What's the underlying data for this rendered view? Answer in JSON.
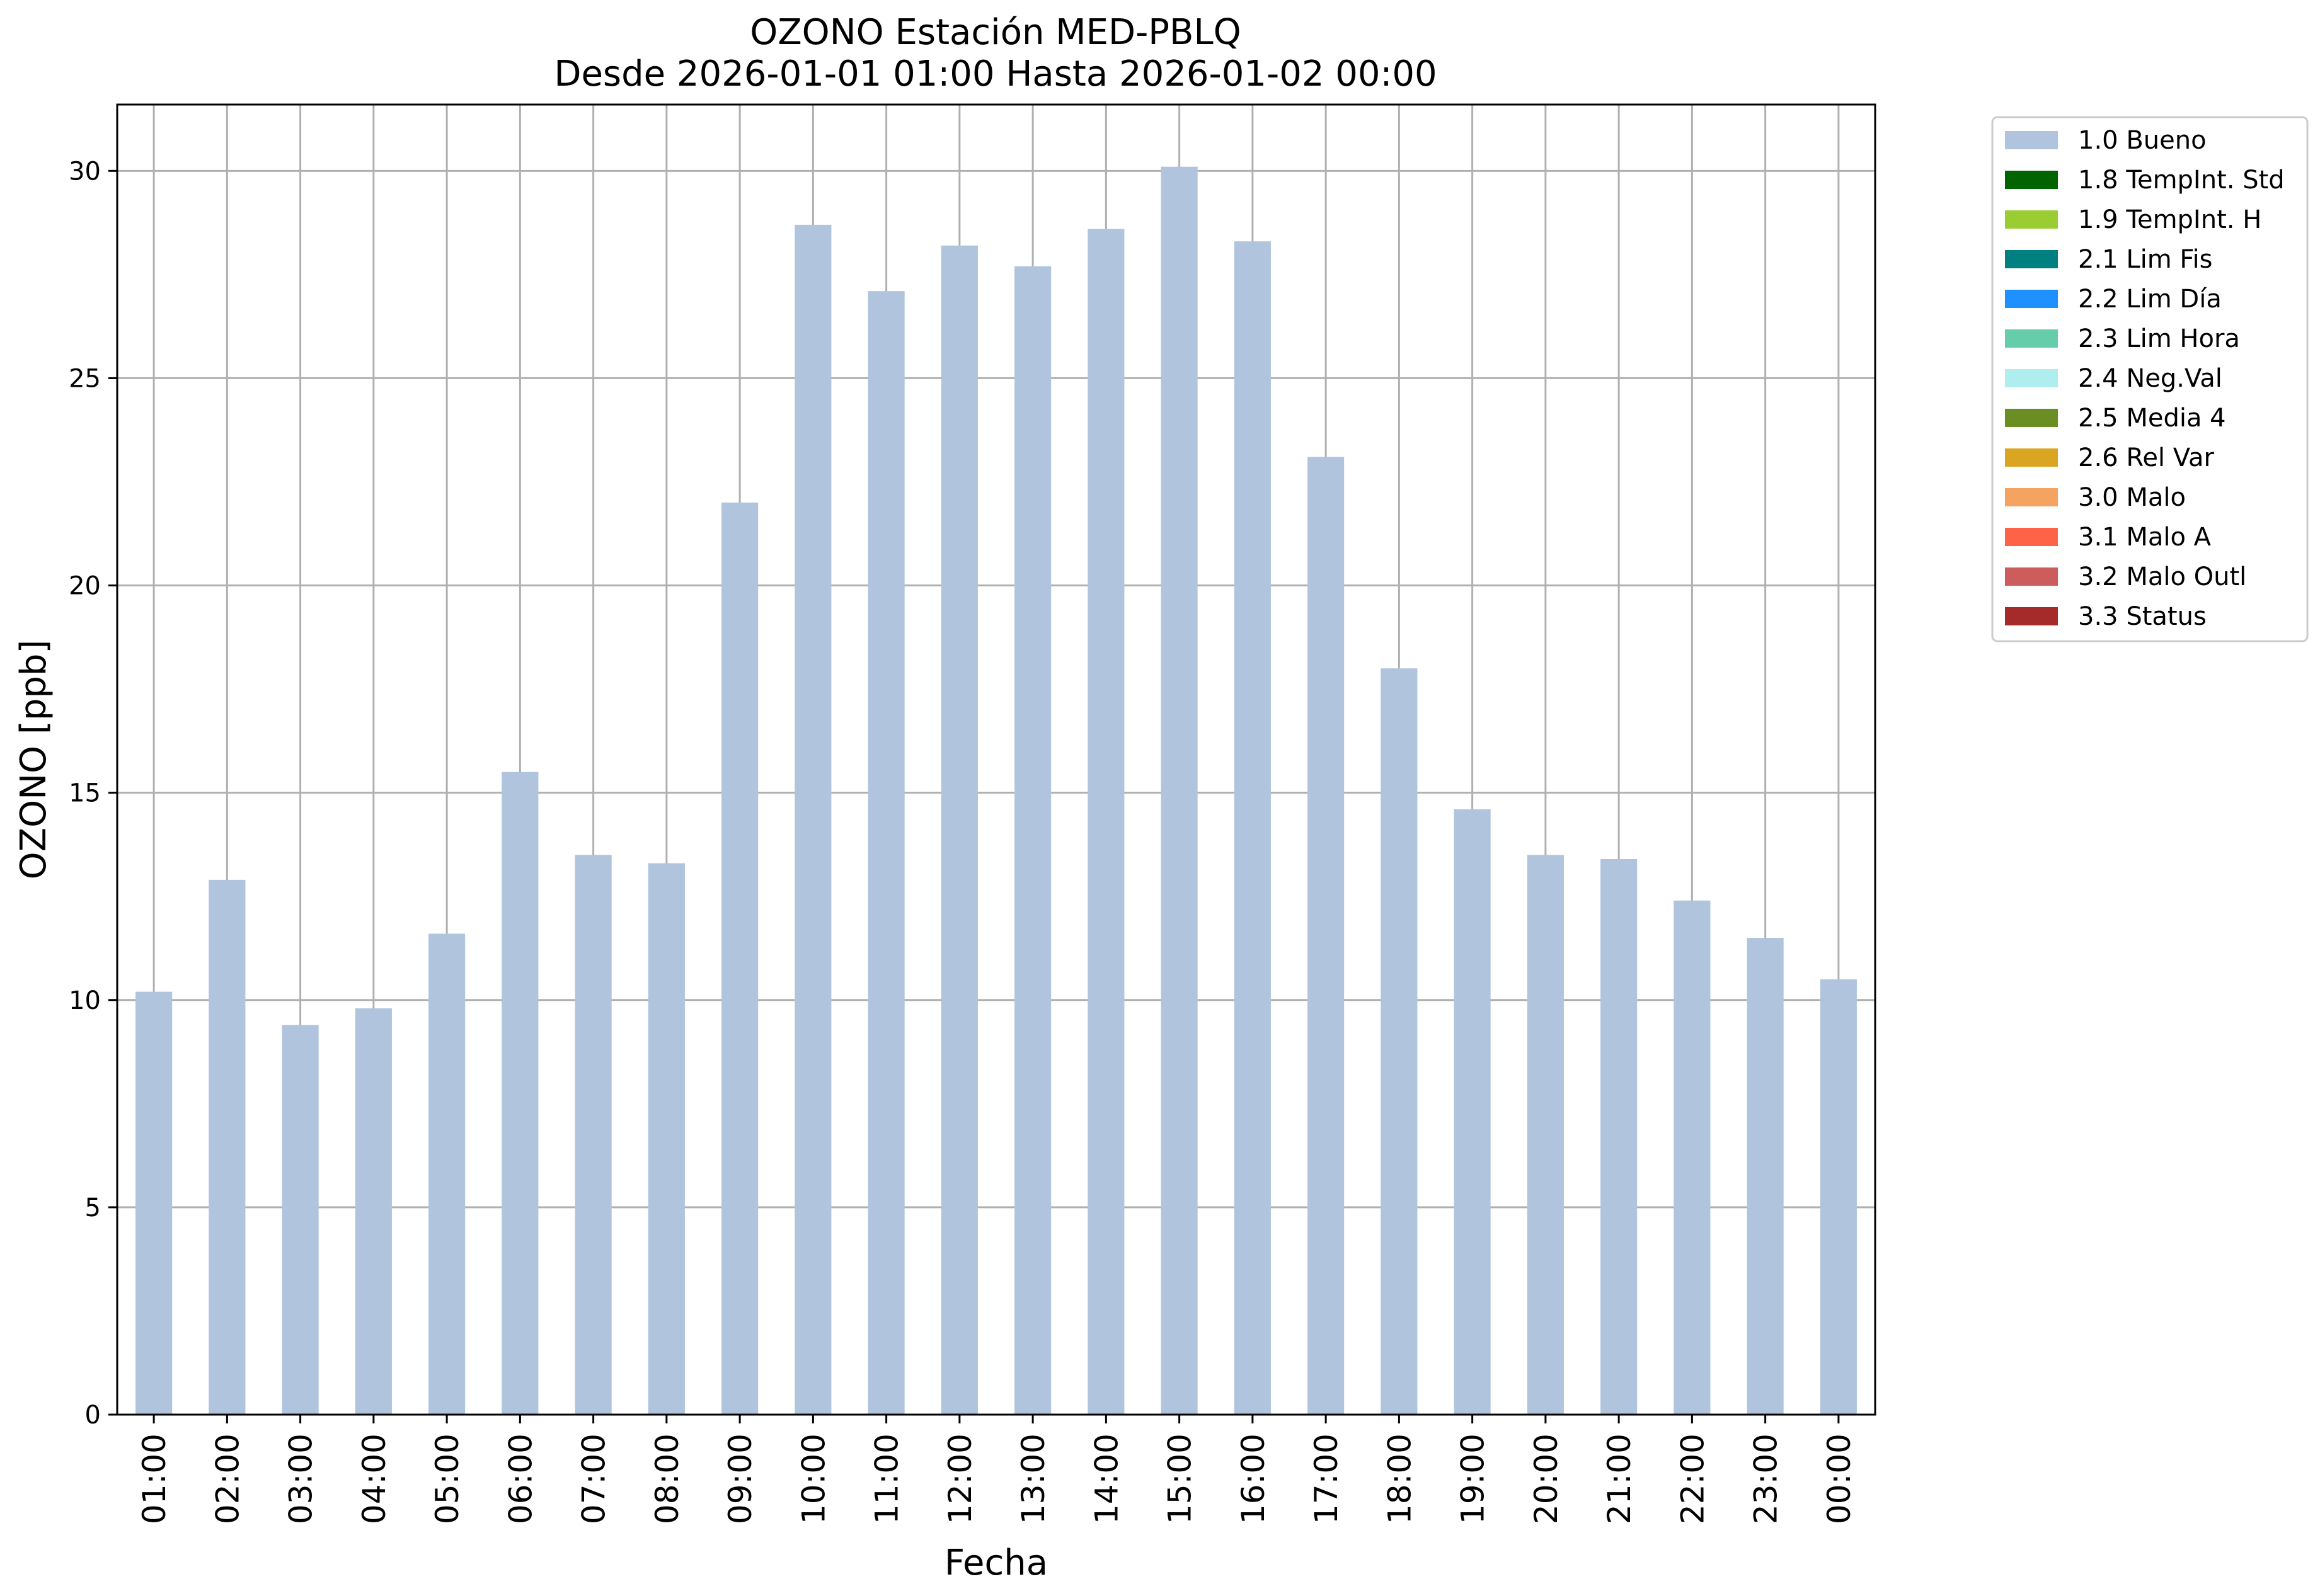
{
  "chart_data": {
    "type": "bar",
    "title": "OZONO Estación MED-PBLQ",
    "subtitle": "Desde 2026-01-01 01:00 Hasta 2026-01-02 00:00",
    "xlabel": "Fecha",
    "ylabel": "OZONO [ppb]",
    "ylim": [
      0,
      31.6
    ],
    "yticks": [
      0,
      5,
      10,
      15,
      20,
      25,
      30
    ],
    "grid": true,
    "legend_position": "outside-top-right",
    "categories": [
      "01:00",
      "02:00",
      "03:00",
      "04:00",
      "05:00",
      "06:00",
      "07:00",
      "08:00",
      "09:00",
      "10:00",
      "11:00",
      "12:00",
      "13:00",
      "14:00",
      "15:00",
      "16:00",
      "17:00",
      "18:00",
      "19:00",
      "20:00",
      "21:00",
      "22:00",
      "23:00",
      "00:00"
    ],
    "series": [
      {
        "name": "1.0 Bueno",
        "color": "#b0c4de",
        "values": [
          10.2,
          12.9,
          9.4,
          9.8,
          11.6,
          15.5,
          13.5,
          13.3,
          22.0,
          28.7,
          27.1,
          28.2,
          27.7,
          28.6,
          30.1,
          28.3,
          23.1,
          18.0,
          14.6,
          13.5,
          13.4,
          12.4,
          11.5,
          10.5
        ]
      }
    ],
    "legend": [
      {
        "label": "1.0 Bueno",
        "color": "#b0c4de"
      },
      {
        "label": "1.8 TempInt. Std",
        "color": "#006400"
      },
      {
        "label": "1.9 TempInt. H",
        "color": "#9acd32"
      },
      {
        "label": "2.1 Lim Fis",
        "color": "#008080"
      },
      {
        "label": "2.2 Lim Día",
        "color": "#1e90ff"
      },
      {
        "label": "2.3 Lim Hora",
        "color": "#66cdaa"
      },
      {
        "label": "2.4 Neg.Val",
        "color": "#afeeee"
      },
      {
        "label": "2.5 Media 4",
        "color": "#6b8e23"
      },
      {
        "label": "2.6 Rel Var",
        "color": "#daa520"
      },
      {
        "label": "3.0 Malo",
        "color": "#f4a460"
      },
      {
        "label": "3.1 Malo A",
        "color": "#ff6347"
      },
      {
        "label": "3.2 Malo Outl",
        "color": "#cd5c5c"
      },
      {
        "label": "3.3 Status",
        "color": "#a52a2a"
      }
    ]
  }
}
